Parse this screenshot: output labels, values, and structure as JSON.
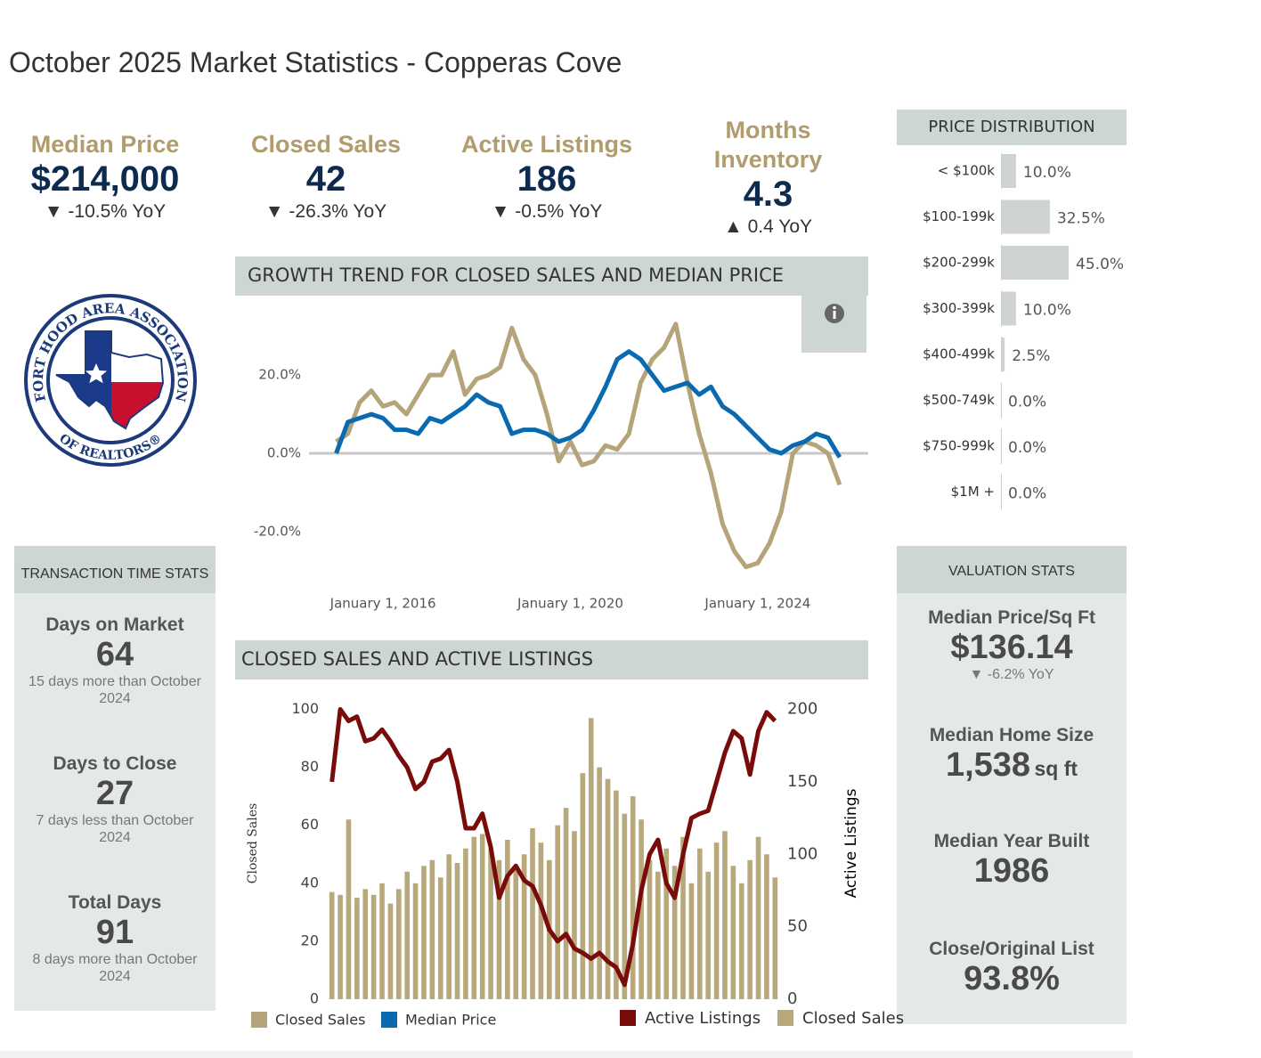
{
  "header": {
    "title": "October 2025 Market Statistics - Copperas Cove"
  },
  "kpis": [
    {
      "label": "Median Price",
      "value": "$214,000",
      "change": "▼ -10.5% YoY"
    },
    {
      "label": "Closed Sales",
      "value": "42",
      "change": "▼ -26.3% YoY"
    },
    {
      "label": "Active Listings",
      "value": "186",
      "change": "▼ -0.5% YoY"
    },
    {
      "label": "Months Inventory",
      "value": "4.3",
      "change": "▲ 0.4 YoY"
    }
  ],
  "logo": {
    "top_text": "FORT HOOD AREA ASSOCIATION",
    "bottom_text": "OF REALTORS®"
  },
  "transaction_stats": {
    "title": "TRANSACTION TIME STATS",
    "items": [
      {
        "label": "Days on Market",
        "value": "64",
        "note": "15 days more than October 2024"
      },
      {
        "label": "Days to Close",
        "value": "27",
        "note": "7 days less than October 2024"
      },
      {
        "label": "Total Days",
        "value": "91",
        "note": "8 days more than October 2024"
      }
    ]
  },
  "valuation_stats": {
    "title": "VALUATION STATS",
    "items": [
      {
        "label": "Median Price/Sq Ft",
        "value": "$136.14",
        "change": "▼ -6.2% YoY"
      },
      {
        "label": "Median Home Size",
        "value": "1,538",
        "unit": "sq ft"
      },
      {
        "label": "Median Year Built",
        "value": "1986"
      },
      {
        "label": "Close/Original List",
        "value": "93.8%"
      }
    ]
  },
  "chart_data": [
    {
      "type": "line",
      "title": "GROWTH TREND FOR CLOSED SALES AND MEDIAN PRICE",
      "x": [
        2015,
        2015.25,
        2015.5,
        2015.75,
        2016,
        2016.25,
        2016.5,
        2016.75,
        2017,
        2017.25,
        2017.5,
        2017.75,
        2018,
        2018.25,
        2018.5,
        2018.75,
        2019,
        2019.25,
        2019.5,
        2019.75,
        2020,
        2020.25,
        2020.5,
        2020.75,
        2021,
        2021.25,
        2021.5,
        2021.75,
        2022,
        2022.25,
        2022.5,
        2022.75,
        2023,
        2023.25,
        2023.5,
        2023.75,
        2024,
        2024.25,
        2024.5,
        2024.75,
        2025,
        2025.25,
        2025.5,
        2025.75
      ],
      "series": [
        {
          "name": "Closed Sales",
          "color": "#b5a47a",
          "values": [
            3,
            5,
            13,
            16,
            12,
            13,
            10,
            15,
            20,
            20,
            26,
            15,
            19,
            20,
            22,
            32,
            24,
            20,
            10,
            -2,
            3,
            -3,
            -2,
            2,
            1,
            5,
            18,
            24,
            27,
            33,
            18,
            5,
            -5,
            -18,
            -25,
            -29,
            -28,
            -23,
            -15,
            0,
            3,
            2,
            0,
            -8
          ]
        },
        {
          "name": "Median Price",
          "color": "#0a6ab0",
          "values": [
            0,
            8,
            9,
            10,
            9,
            6,
            6,
            5,
            9,
            8,
            10,
            12,
            15,
            13,
            12,
            5,
            6,
            6,
            5,
            3,
            4,
            6,
            11,
            17,
            24,
            26,
            24,
            20,
            16,
            17,
            18,
            15,
            17,
            12,
            10,
            7,
            4,
            1,
            0,
            2,
            3,
            5,
            4,
            -1
          ]
        }
      ],
      "xlim": [
        2014.42,
        2026.36
      ],
      "xticks": [
        {
          "value": 2016,
          "label": "January 1, 2016"
        },
        {
          "value": 2020,
          "label": "January 1, 2020"
        },
        {
          "value": 2024,
          "label": "January 1, 2024"
        }
      ],
      "ylim": [
        -32.5,
        37.3
      ],
      "yticks": [
        {
          "value": -20,
          "label": "-20.0%"
        },
        {
          "value": 0,
          "label": "0.0%"
        },
        {
          "value": 20,
          "label": "20.0%"
        }
      ],
      "zero_line": true
    },
    {
      "type": "combo",
      "title": "CLOSED SALES AND ACTIVE LISTINGS",
      "categories": [
        null,
        null,
        null,
        null,
        null,
        null,
        null,
        null,
        null,
        null,
        null,
        null,
        null,
        null,
        null,
        null,
        null,
        null,
        null,
        null,
        null,
        null,
        null,
        null,
        null,
        null,
        null,
        null,
        null,
        null,
        null,
        null,
        null,
        null,
        null,
        null,
        null,
        null,
        null,
        null,
        null,
        null,
        null,
        null,
        null,
        null,
        null,
        null,
        null,
        null,
        null,
        null,
        null,
        null
      ],
      "series": [
        {
          "name": "Active Listings",
          "type": "line",
          "axis": "y2",
          "color": "#7a0b0b",
          "values": [
            150,
            200,
            192,
            195,
            178,
            180,
            186,
            178,
            168,
            160,
            145,
            150,
            164,
            166,
            172,
            150,
            118,
            118,
            128,
            105,
            70,
            85,
            92,
            82,
            78,
            65,
            48,
            40,
            45,
            35,
            32,
            28,
            32,
            26,
            22,
            10,
            38,
            75,
            100,
            110,
            80,
            70,
            100,
            125,
            128,
            130,
            150,
            170,
            185,
            180,
            155,
            185,
            198,
            192
          ]
        },
        {
          "name": "Closed Sales",
          "type": "bar",
          "color": "#b8a97c",
          "values": [
            37,
            36,
            62,
            35,
            38,
            36,
            40,
            33,
            38,
            44,
            40,
            46,
            48,
            42,
            50,
            47,
            52,
            56,
            57,
            52,
            48,
            55,
            46,
            50,
            59,
            54,
            48,
            60,
            66,
            58,
            78,
            97,
            80,
            76,
            72,
            64,
            70,
            62,
            48,
            44,
            52,
            46,
            56,
            40,
            52,
            44,
            54,
            58,
            46,
            40,
            48,
            56,
            50,
            42
          ]
        }
      ],
      "ylabel": "Closed Sales",
      "y2label": "Active Listings",
      "ylim": [
        0,
        102
      ],
      "yticks": [
        0,
        20,
        40,
        60,
        80,
        100
      ],
      "y2lim": [
        0,
        204
      ],
      "y2ticks": [
        0,
        50,
        100,
        150,
        200
      ]
    },
    {
      "type": "bar",
      "orientation": "horizontal",
      "title": "PRICE DISTRIBUTION",
      "color": "#d0d3d3",
      "categories": [
        "< $100k",
        "$100-199k",
        "$200-299k",
        "$300-399k",
        "$400-499k",
        "$500-749k",
        "$750-999k",
        "$1M +"
      ],
      "values": [
        10,
        32.5,
        45,
        10,
        2.5,
        0,
        0,
        0
      ],
      "value_labels": [
        "10.0%",
        "32.5%",
        "45.0%",
        "10.0%",
        "2.5%",
        "0.0%",
        "0.0%",
        "0.0%"
      ]
    }
  ]
}
